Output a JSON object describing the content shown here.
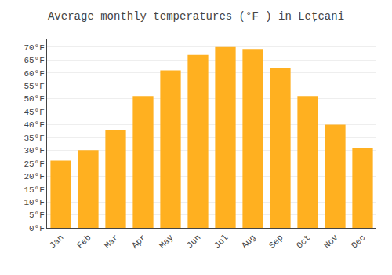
{
  "chart_data": {
    "type": "bar",
    "title": "Average monthly temperatures (°F ) in Leţcani",
    "categories": [
      "Jan",
      "Feb",
      "Mar",
      "Apr",
      "May",
      "Jun",
      "Jul",
      "Aug",
      "Sep",
      "Oct",
      "Nov",
      "Dec"
    ],
    "values": [
      26,
      30,
      38,
      51,
      61,
      67,
      70,
      69,
      62,
      51,
      40,
      31
    ],
    "color": "#FFB020",
    "ylim": [
      0,
      73
    ],
    "yticks": [
      {
        "value": 0,
        "label": "0°F"
      },
      {
        "value": 5,
        "label": "5°F"
      },
      {
        "value": 10,
        "label": "10°F"
      },
      {
        "value": 15,
        "label": "15°F"
      },
      {
        "value": 20,
        "label": "20°F"
      },
      {
        "value": 25,
        "label": "25°F"
      },
      {
        "value": 30,
        "label": "30°F"
      },
      {
        "value": 35,
        "label": "35°F"
      },
      {
        "value": 40,
        "label": "40°F"
      },
      {
        "value": 45,
        "label": "45°F"
      },
      {
        "value": 50,
        "label": "50°F"
      },
      {
        "value": 55,
        "label": "55°F"
      },
      {
        "value": 60,
        "label": "60°F"
      },
      {
        "value": 65,
        "label": "65°F"
      },
      {
        "value": 70,
        "label": "70°F"
      }
    ],
    "grid": true
  }
}
